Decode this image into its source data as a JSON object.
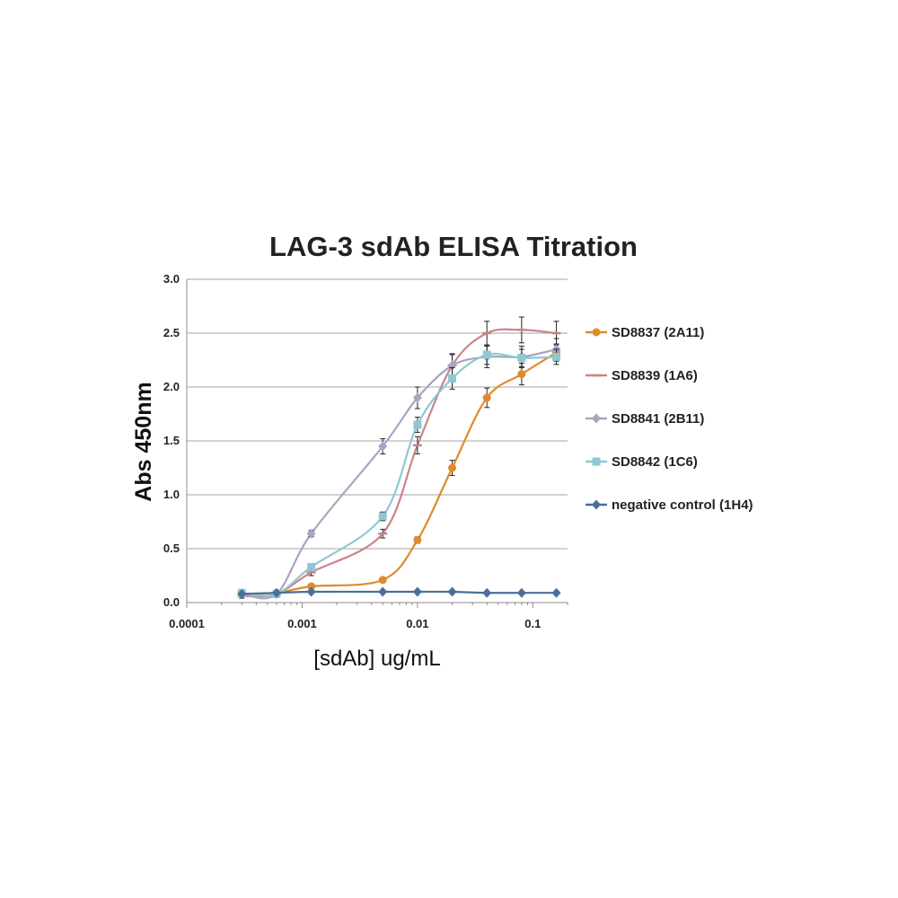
{
  "chart_data": {
    "type": "line",
    "title": "LAG-3 sdAb ELISA Titration",
    "xlabel": "[sdAb] ug/mL",
    "ylabel": "Abs  450nm",
    "x_scale": "log",
    "xlim": [
      0.0001,
      0.2
    ],
    "ylim": [
      0,
      3.0
    ],
    "x_ticks": [
      0.0001,
      0.001,
      0.01,
      0.1
    ],
    "x_tick_labels": [
      "0.0001",
      "0.001",
      "0.01",
      "0.1"
    ],
    "y_ticks": [
      0,
      0.5,
      1.0,
      1.5,
      2.0,
      2.5,
      3.0
    ],
    "y_tick_labels": [
      "0.0",
      "0.5",
      "1.0",
      "1.5",
      "2.0",
      "2.5",
      "3.0"
    ],
    "grid": "horizontal",
    "legend_position": "right",
    "x": [
      0.0003,
      0.0006,
      0.0012,
      0.005,
      0.01,
      0.02,
      0.04,
      0.08,
      0.16
    ],
    "series": [
      {
        "name": "SD8837 (2A11)",
        "color": "#e08a2e",
        "marker": "circle",
        "values": [
          0.08,
          0.09,
          0.15,
          0.21,
          0.58,
          1.25,
          1.9,
          2.12,
          2.32
        ],
        "errors": [
          0.02,
          0.02,
          0.02,
          0.02,
          0.03,
          0.07,
          0.09,
          0.1,
          0.08
        ]
      },
      {
        "name": "SD8839 (1A6)",
        "color": "#c9858a",
        "marker": "dash",
        "values": [
          0.06,
          0.08,
          0.28,
          0.64,
          1.46,
          2.2,
          2.5,
          2.53,
          2.5
        ],
        "errors": [
          0.02,
          0.02,
          0.03,
          0.04,
          0.08,
          0.11,
          0.11,
          0.12,
          0.11
        ]
      },
      {
        "name": "SD8841 (2B11)",
        "color": "#a8a4c2",
        "marker": "diamond",
        "values": [
          0.08,
          0.08,
          0.64,
          1.45,
          1.9,
          2.2,
          2.28,
          2.28,
          2.35
        ],
        "errors": [
          0.02,
          0.02,
          0.03,
          0.07,
          0.1,
          0.1,
          0.1,
          0.1,
          0.1
        ]
      },
      {
        "name": "SD8842 (1C6)",
        "color": "#8ec8d2",
        "marker": "square",
        "values": [
          0.09,
          0.08,
          0.33,
          0.8,
          1.65,
          2.08,
          2.3,
          2.27,
          2.28
        ],
        "errors": [
          0.02,
          0.02,
          0.03,
          0.04,
          0.07,
          0.1,
          0.09,
          0.08,
          0.07
        ]
      },
      {
        "name": "negative control (1H4)",
        "color": "#4a6f9a",
        "marker": "diamond",
        "values": [
          0.08,
          0.09,
          0.1,
          0.1,
          0.1,
          0.1,
          0.09,
          0.09,
          0.09
        ],
        "errors": [
          0.01,
          0.01,
          0.01,
          0.01,
          0.01,
          0.01,
          0.01,
          0.01,
          0.01
        ]
      }
    ]
  }
}
